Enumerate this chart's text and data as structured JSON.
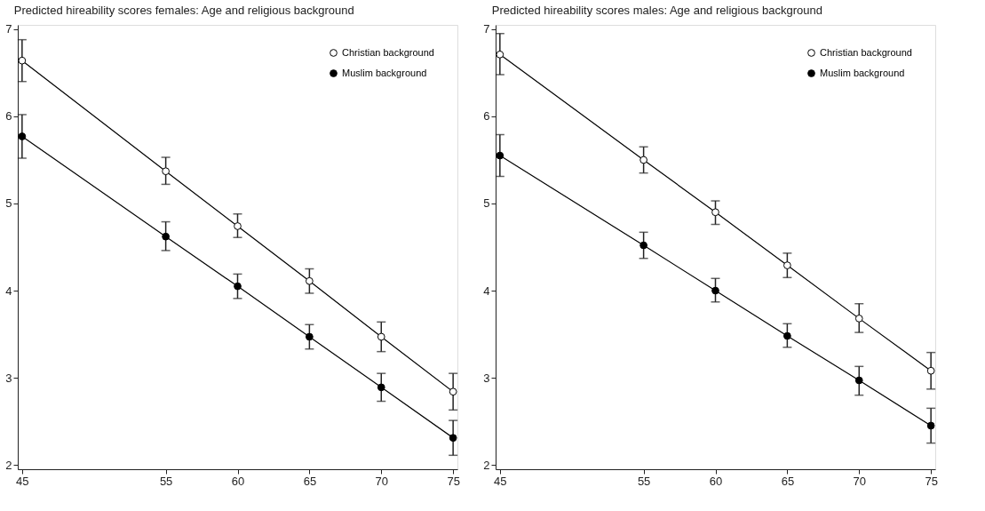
{
  "chart_data": [
    {
      "type": "line",
      "title": "Predicted hireability scores females: Age and religious background",
      "x": [
        45,
        55,
        60,
        65,
        70,
        75
      ],
      "xlim": [
        44.7,
        75.3
      ],
      "xticks": [
        45,
        55,
        60,
        65,
        70,
        75
      ],
      "ylim": [
        1.95,
        7.05
      ],
      "yticks": [
        2,
        3,
        4,
        5,
        6,
        7
      ],
      "grid": false,
      "legend": "top right",
      "marker": "circle",
      "line_style": "solid",
      "series": [
        {
          "name": "Christian background",
          "color": "#000000",
          "values": [
            6.64,
            5.37,
            4.74,
            4.11,
            3.47,
            2.84
          ],
          "errors": [
            [
              6.4,
              6.88
            ],
            [
              5.22,
              5.53
            ],
            [
              4.61,
              4.88
            ],
            [
              3.97,
              4.25
            ],
            [
              3.3,
              3.64
            ],
            [
              2.63,
              3.05
            ]
          ]
        },
        {
          "name": "Muslim background",
          "color": "#000000",
          "values": [
            5.77,
            4.62,
            4.05,
            3.47,
            2.89,
            2.31
          ],
          "errors": [
            [
              5.52,
              6.02
            ],
            [
              4.46,
              4.79
            ],
            [
              3.91,
              4.19
            ],
            [
              3.33,
              3.61
            ],
            [
              2.73,
              3.05
            ],
            [
              2.11,
              2.51
            ]
          ]
        }
      ]
    },
    {
      "type": "line",
      "title": "Predicted hireability scores males: Age and religious background",
      "x": [
        45,
        55,
        60,
        65,
        70,
        75
      ],
      "xlim": [
        44.7,
        75.3
      ],
      "xticks": [
        45,
        55,
        60,
        65,
        70,
        75
      ],
      "ylim": [
        1.95,
        7.05
      ],
      "yticks": [
        2,
        3,
        4,
        5,
        6,
        7
      ],
      "grid": false,
      "legend": "top right",
      "marker": "circle",
      "line_style": "solid",
      "series": [
        {
          "name": "Christian background",
          "color": "#000000",
          "values": [
            6.71,
            5.5,
            4.9,
            4.29,
            3.68,
            3.08
          ],
          "errors": [
            [
              6.48,
              6.95
            ],
            [
              5.35,
              5.65
            ],
            [
              4.76,
              5.03
            ],
            [
              4.15,
              4.43
            ],
            [
              3.52,
              3.85
            ],
            [
              2.87,
              3.29
            ]
          ]
        },
        {
          "name": "Muslim background",
          "color": "#000000",
          "values": [
            5.55,
            4.52,
            4.0,
            3.48,
            2.97,
            2.45
          ],
          "errors": [
            [
              5.31,
              5.79
            ],
            [
              4.37,
              4.67
            ],
            [
              3.87,
              4.14
            ],
            [
              3.35,
              3.62
            ],
            [
              2.8,
              3.13
            ],
            [
              2.25,
              2.65
            ]
          ]
        }
      ]
    }
  ]
}
